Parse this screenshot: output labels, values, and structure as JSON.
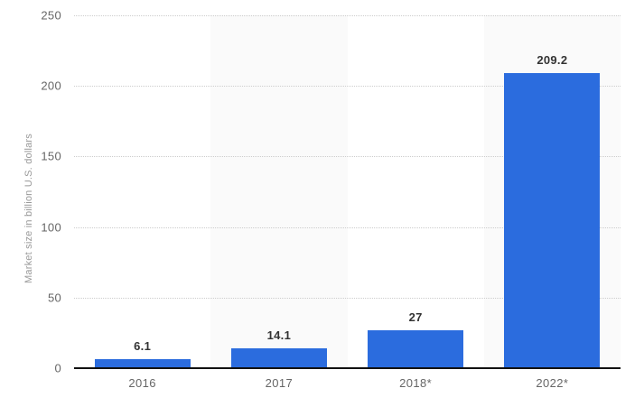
{
  "chart_data": {
    "type": "bar",
    "title": "",
    "categories": [
      "2016",
      "2017",
      "2018*",
      "2022*"
    ],
    "values": [
      6.1,
      14.1,
      27,
      209.2
    ],
    "value_labels": [
      "6.1",
      "14.1",
      "27",
      "209.2"
    ],
    "xlabel": "",
    "ylabel": "Market size in billion U.S. dollars",
    "ylim": [
      0,
      250
    ],
    "yticks": [
      0,
      50,
      100,
      150,
      200,
      250
    ],
    "grid": "horizontal-dotted",
    "legend": "none",
    "colors": {
      "bar": "#2b6cde",
      "band": "#fafafa",
      "gridline": "#cccccc",
      "axis_line": "#111111",
      "tick_text": "#666666",
      "value_text": "#333333",
      "axis_title_text": "#999999",
      "background": "#ffffff"
    },
    "banded_columns": [
      1,
      3
    ]
  }
}
